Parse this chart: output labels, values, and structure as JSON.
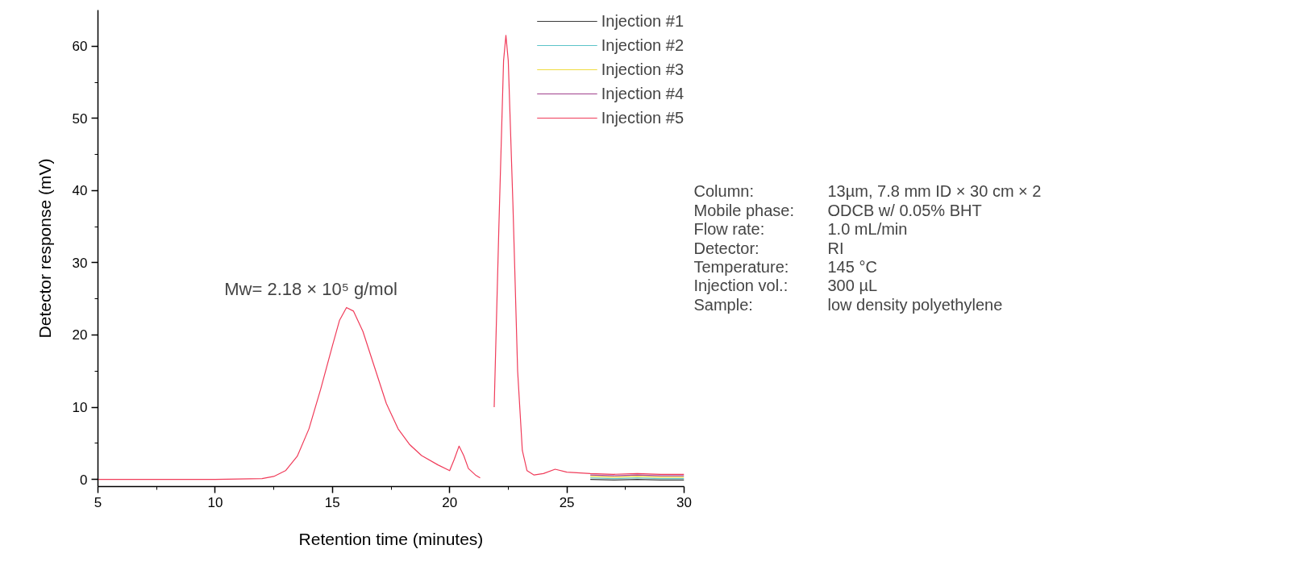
{
  "chart_data": {
    "type": "line",
    "xlabel": "Retention time (minutes)",
    "ylabel": "Detector response (mV)",
    "x": [
      5,
      8,
      10,
      12,
      12.5,
      13,
      13.5,
      14,
      14.5,
      15,
      15.3,
      15.6,
      15.9,
      16.3,
      16.8,
      17.3,
      17.8,
      18.3,
      18.8,
      19.5,
      20,
      20.2,
      20.4,
      20.6,
      20.8,
      21.1,
      21.3,
      21.5,
      21.7,
      21.9,
      22.1,
      22.3,
      22.4,
      22.5,
      22.7,
      22.9,
      23.1,
      23.3,
      23.6,
      24,
      24.5,
      25,
      26,
      27,
      28,
      29,
      30
    ],
    "series": [
      {
        "name": "Injection #1",
        "color": "#3a3a3a",
        "values": [
          null,
          null,
          null,
          null,
          null,
          null,
          null,
          null,
          null,
          null,
          null,
          null,
          null,
          null,
          null,
          null,
          null,
          null,
          null,
          null,
          null,
          null,
          null,
          null,
          null,
          null,
          null,
          null,
          null,
          null,
          null,
          null,
          null,
          null,
          null,
          null,
          null,
          null,
          null,
          null,
          null,
          null,
          0,
          -0.1,
          0,
          -0.1,
          -0.1
        ]
      },
      {
        "name": "Injection #2",
        "color": "#5cc4c8",
        "values": [
          null,
          null,
          null,
          null,
          null,
          null,
          null,
          null,
          null,
          null,
          null,
          null,
          null,
          null,
          null,
          null,
          null,
          null,
          null,
          null,
          null,
          null,
          null,
          null,
          null,
          null,
          null,
          null,
          null,
          null,
          null,
          null,
          null,
          null,
          null,
          null,
          null,
          null,
          null,
          null,
          null,
          null,
          0.2,
          0.1,
          0.2,
          0.1,
          0.1
        ]
      },
      {
        "name": "Injection #3",
        "color": "#f0dc40",
        "values": [
          null,
          null,
          null,
          null,
          null,
          null,
          null,
          null,
          null,
          null,
          null,
          null,
          null,
          null,
          null,
          null,
          null,
          null,
          null,
          null,
          null,
          null,
          null,
          null,
          null,
          null,
          null,
          null,
          null,
          null,
          null,
          null,
          null,
          null,
          null,
          null,
          null,
          null,
          null,
          null,
          null,
          null,
          0.4,
          0.3,
          0.4,
          0.3,
          0.3
        ]
      },
      {
        "name": "Injection #4",
        "color": "#a0408c",
        "values": [
          null,
          null,
          null,
          null,
          null,
          null,
          null,
          null,
          null,
          null,
          null,
          null,
          null,
          null,
          null,
          null,
          null,
          null,
          null,
          null,
          null,
          null,
          null,
          null,
          null,
          null,
          null,
          null,
          null,
          null,
          null,
          null,
          null,
          null,
          null,
          null,
          null,
          null,
          null,
          null,
          null,
          null,
          0.6,
          0.5,
          0.6,
          0.5,
          0.5
        ]
      },
      {
        "name": "Injection #5",
        "color": "#f03c5a",
        "values": [
          0,
          0,
          0,
          0.1,
          0.4,
          1.2,
          3.2,
          7,
          12.5,
          18.5,
          22,
          23.8,
          23.3,
          20.5,
          15.5,
          10.5,
          7,
          4.8,
          3.3,
          2,
          1.2,
          2.8,
          4.6,
          3.3,
          1.5,
          0.6,
          0.2,
          null,
          null,
          10,
          35,
          58,
          61.5,
          58,
          38,
          15,
          4,
          1.2,
          0.6,
          0.8,
          1.4,
          1,
          0.8,
          0.7,
          0.8,
          0.7,
          0.7
        ]
      }
    ],
    "xlim": [
      5,
      30
    ],
    "xticks": [
      5,
      10,
      15,
      20,
      25,
      30
    ],
    "ylim": [
      -1,
      65
    ],
    "yticks": [
      0,
      10,
      20,
      30,
      40,
      50,
      60
    ],
    "legend": "top right",
    "grid": false,
    "annotations": [
      "Mw= 2.18 × 10⁵ g/mol",
      "Column: 13µm, 7.8 mm ID × 30 cm × 2",
      "Mobile phase: ODCB w/ 0.05% BHT",
      "Flow rate: 1.0 mL/min",
      "Detector: RI",
      "Temperature: 145 °C",
      "Injection vol.: 300 µL",
      "Sample: low density polyethylene"
    ]
  }
}
